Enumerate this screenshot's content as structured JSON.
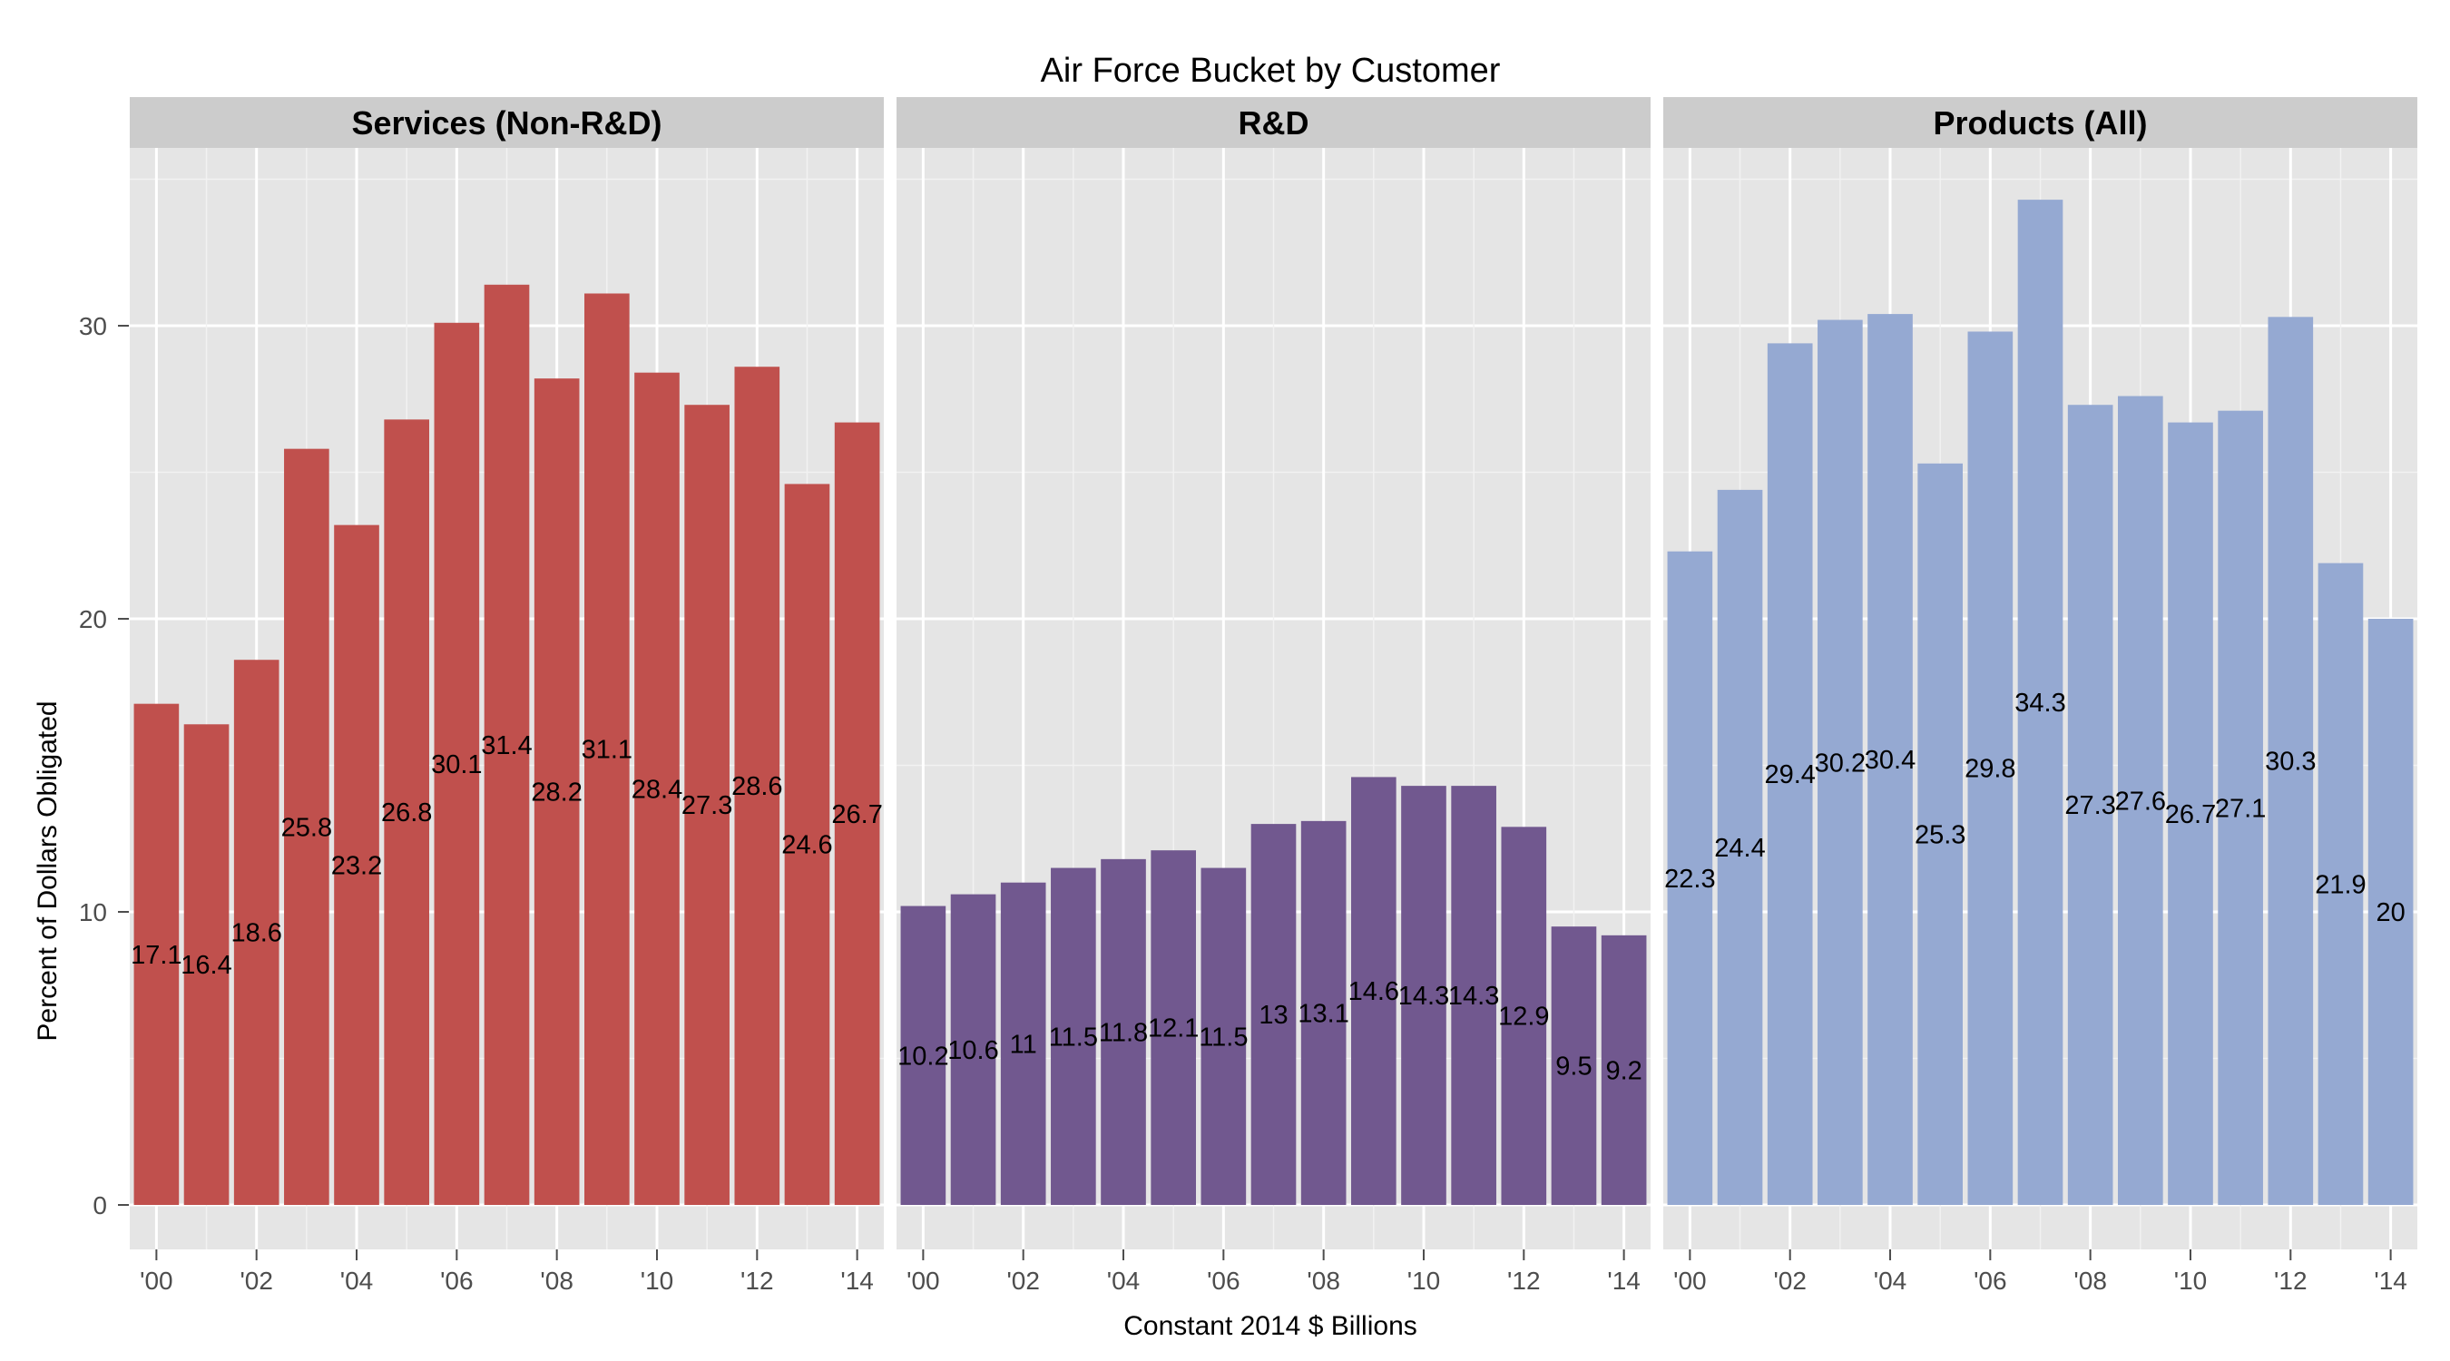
{
  "chart_data": {
    "type": "bar",
    "title": "Air Force Bucket by Customer",
    "xlabel": "Constant 2014 $ Billions",
    "ylabel": "Percent of Dollars Obligated",
    "ylim": [
      0,
      36
    ],
    "yticks": [
      0,
      10,
      20,
      30
    ],
    "ytick_labels": [
      "0",
      "10",
      "20",
      "30"
    ],
    "grid": true,
    "x": [
      2000,
      2001,
      2002,
      2003,
      2004,
      2005,
      2006,
      2007,
      2008,
      2009,
      2010,
      2011,
      2012,
      2013,
      2014
    ],
    "xticks": [
      2000,
      2002,
      2004,
      2006,
      2008,
      2010,
      2012,
      2014
    ],
    "xtick_labels": [
      "'00",
      "'02",
      "'04",
      "'06",
      "'08",
      "'10",
      "'12",
      "'14"
    ],
    "facets": [
      {
        "name": "Services (Non-R&D)",
        "color": "#c0504d",
        "values": [
          17.1,
          16.4,
          18.6,
          25.8,
          23.2,
          26.8,
          30.1,
          31.4,
          28.2,
          31.1,
          28.4,
          27.3,
          28.6,
          24.6,
          26.7
        ],
        "labels": [
          "17.1",
          "16.4",
          "18.6",
          "25.8",
          "23.2",
          "26.8",
          "30.1",
          "31.4",
          "28.2",
          "31.1",
          "28.4",
          "27.3",
          "28.6",
          "24.6",
          "26.7"
        ]
      },
      {
        "name": "R&D",
        "color": "#71588f",
        "values": [
          10.2,
          10.6,
          11,
          11.5,
          11.8,
          12.1,
          11.5,
          13,
          13.1,
          14.6,
          14.3,
          14.3,
          12.9,
          9.5,
          9.2
        ],
        "labels": [
          "10.2",
          "10.6",
          "11",
          "11.5",
          "11.8",
          "12.1",
          "11.5",
          "13",
          "13.1",
          "14.6",
          "14.3",
          "14.3",
          "12.9",
          "9.5",
          "9.2"
        ]
      },
      {
        "name": "Products (All)",
        "color": "#95a9d2",
        "values": [
          22.3,
          24.4,
          29.4,
          30.2,
          30.4,
          25.3,
          29.8,
          34.3,
          27.3,
          27.6,
          26.7,
          27.1,
          30.3,
          21.9,
          20
        ],
        "labels": [
          "22.3",
          "24.4",
          "29.4",
          "30.2",
          "30.4",
          "25.3",
          "29.8",
          "34.3",
          "27.3",
          "27.6",
          "26.7",
          "27.1",
          "30.3",
          "21.9",
          "20"
        ]
      }
    ]
  }
}
